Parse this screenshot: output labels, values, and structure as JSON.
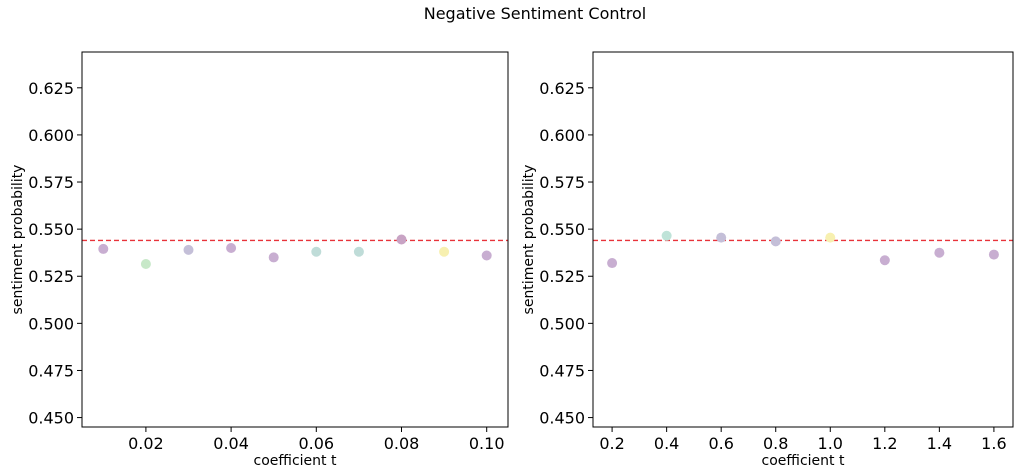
{
  "figure": {
    "suptitle": "Negative Sentiment Control"
  },
  "chart_data": [
    {
      "type": "scatter",
      "xlabel": "coefficient t",
      "ylabel": "sentiment probability",
      "xlim": [
        0.005,
        0.105
      ],
      "ylim": [
        0.445,
        0.644
      ],
      "xticks": [
        0.02,
        0.04,
        0.06,
        0.08,
        0.1
      ],
      "xtick_labels": [
        "0.02",
        "0.04",
        "0.06",
        "0.08",
        "0.10"
      ],
      "yticks": [
        0.45,
        0.475,
        0.5,
        0.525,
        0.55,
        0.575,
        0.6,
        0.625
      ],
      "ytick_labels": [
        "0.450",
        "0.475",
        "0.500",
        "0.525",
        "0.550",
        "0.575",
        "0.600",
        "0.625"
      ],
      "reference_line": {
        "y": 0.544,
        "color": "#e8333a",
        "style": "dashed"
      },
      "points": [
        {
          "x": 0.01,
          "y": 0.5395,
          "color": "#c8aed1"
        },
        {
          "x": 0.02,
          "y": 0.5315,
          "color": "#c7e8c8"
        },
        {
          "x": 0.03,
          "y": 0.539,
          "color": "#c4bfd8"
        },
        {
          "x": 0.04,
          "y": 0.54,
          "color": "#c8aed1"
        },
        {
          "x": 0.05,
          "y": 0.535,
          "color": "#c8aed1"
        },
        {
          "x": 0.06,
          "y": 0.538,
          "color": "#bfdcd8"
        },
        {
          "x": 0.07,
          "y": 0.538,
          "color": "#bfdcd8"
        },
        {
          "x": 0.08,
          "y": 0.5445,
          "color": "#c8a3c4"
        },
        {
          "x": 0.09,
          "y": 0.538,
          "color": "#f7f0b0"
        },
        {
          "x": 0.1,
          "y": 0.536,
          "color": "#c8aed1"
        }
      ],
      "grid": false
    },
    {
      "type": "scatter",
      "xlabel": "coefficient t",
      "ylabel": "sentiment probability",
      "xlim": [
        0.13,
        1.67
      ],
      "ylim": [
        0.445,
        0.644
      ],
      "xticks": [
        0.2,
        0.4,
        0.6,
        0.8,
        1.0,
        1.2,
        1.4,
        1.6
      ],
      "xtick_labels": [
        "0.2",
        "0.4",
        "0.6",
        "0.8",
        "1.0",
        "1.2",
        "1.4",
        "1.6"
      ],
      "yticks": [
        0.45,
        0.475,
        0.5,
        0.525,
        0.55,
        0.575,
        0.6,
        0.625
      ],
      "ytick_labels": [
        "0.450",
        "0.475",
        "0.500",
        "0.525",
        "0.550",
        "0.575",
        "0.600",
        "0.625"
      ],
      "reference_line": {
        "y": 0.544,
        "color": "#e8333a",
        "style": "dashed"
      },
      "points": [
        {
          "x": 0.2,
          "y": 0.532,
          "color": "#c8aed1"
        },
        {
          "x": 0.4,
          "y": 0.5465,
          "color": "#bfe3d8"
        },
        {
          "x": 0.6,
          "y": 0.5455,
          "color": "#c4bfd8"
        },
        {
          "x": 0.8,
          "y": 0.5435,
          "color": "#c4bfd8"
        },
        {
          "x": 1.0,
          "y": 0.5455,
          "color": "#f7f0b0"
        },
        {
          "x": 1.2,
          "y": 0.5335,
          "color": "#c8aed1"
        },
        {
          "x": 1.4,
          "y": 0.5375,
          "color": "#c8aed1"
        },
        {
          "x": 1.6,
          "y": 0.5365,
          "color": "#c8aed1"
        }
      ],
      "grid": false
    }
  ]
}
